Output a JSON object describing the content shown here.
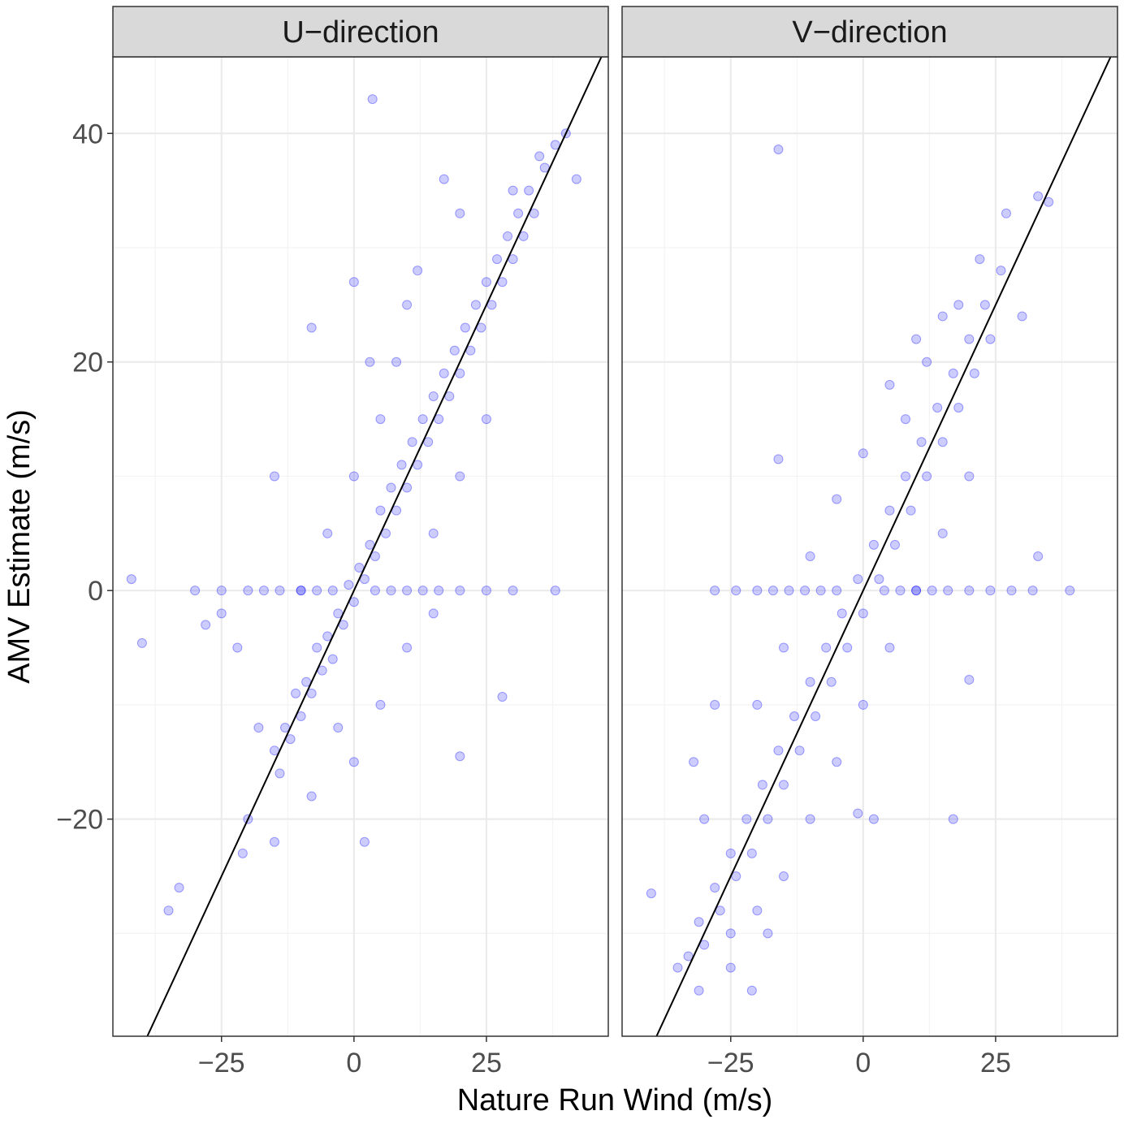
{
  "chart_data": {
    "type": "scatter",
    "xlabel": "Nature Run Wind (m/s)",
    "ylabel": "AMV Estimate (m/s)",
    "xlim": [
      -45.5,
      48
    ],
    "ylim": [
      -39,
      46.7
    ],
    "x_ticks": [
      -25,
      0,
      25
    ],
    "x_tick_labels": [
      "−25",
      "0",
      "25"
    ],
    "y_ticks": [
      -20,
      0,
      20,
      40
    ],
    "y_tick_labels": [
      "−20",
      "0",
      "20",
      "40"
    ],
    "grid": true,
    "reference_line": "y = x",
    "point_color": "#0000FF",
    "panels": [
      {
        "title": "U−direction",
        "points": [
          [
            -15,
            -14
          ],
          [
            -14,
            -16
          ],
          [
            -13,
            -12
          ],
          [
            -12,
            -13
          ],
          [
            -11,
            -9
          ],
          [
            -10,
            -11
          ],
          [
            -9,
            -8
          ],
          [
            -8,
            -9
          ],
          [
            -7,
            -5
          ],
          [
            -6,
            -7
          ],
          [
            -5,
            -4
          ],
          [
            -4,
            -6
          ],
          [
            -3,
            -2
          ],
          [
            -2,
            -3
          ],
          [
            -1,
            0.5
          ],
          [
            0,
            -1
          ],
          [
            1,
            2
          ],
          [
            2,
            1
          ],
          [
            3,
            4
          ],
          [
            4,
            3
          ],
          [
            5,
            7
          ],
          [
            6,
            5
          ],
          [
            7,
            9
          ],
          [
            8,
            7
          ],
          [
            9,
            11
          ],
          [
            10,
            9
          ],
          [
            11,
            13
          ],
          [
            12,
            11
          ],
          [
            13,
            15
          ],
          [
            14,
            13
          ],
          [
            15,
            17
          ],
          [
            16,
            15
          ],
          [
            17,
            19
          ],
          [
            18,
            17
          ],
          [
            19,
            21
          ],
          [
            20,
            19
          ],
          [
            21,
            23
          ],
          [
            22,
            21
          ],
          [
            23,
            25
          ],
          [
            24,
            23
          ],
          [
            25,
            27
          ],
          [
            26,
            25
          ],
          [
            27,
            29
          ],
          [
            28,
            27
          ],
          [
            29,
            31
          ],
          [
            30,
            29
          ],
          [
            31,
            33
          ],
          [
            32,
            31
          ],
          [
            33,
            35
          ],
          [
            34,
            33
          ],
          [
            36,
            37
          ],
          [
            38,
            39
          ],
          [
            -5,
            5
          ],
          [
            0,
            10
          ],
          [
            5,
            15
          ],
          [
            3,
            20
          ],
          [
            10,
            25
          ],
          [
            -10,
            0
          ],
          [
            -18,
            -12
          ],
          [
            -20,
            -20
          ],
          [
            -15,
            -22
          ],
          [
            15,
            5
          ],
          [
            20,
            10
          ],
          [
            25,
            15
          ],
          [
            10,
            -5
          ],
          [
            5,
            -10
          ],
          [
            0,
            -15
          ],
          [
            -8,
            -18
          ],
          [
            -3,
            -12
          ],
          [
            8,
            20
          ],
          [
            12,
            28
          ],
          [
            20,
            33
          ],
          [
            -22,
            -5
          ],
          [
            -25,
            -2
          ],
          [
            -28,
            -3
          ],
          [
            15,
            -2
          ],
          [
            30,
            35
          ],
          [
            35,
            38
          ],
          [
            -30,
            0
          ],
          [
            -25,
            0
          ],
          [
            -20,
            0
          ],
          [
            -17,
            0
          ],
          [
            -14,
            0
          ],
          [
            -10,
            0
          ],
          [
            -7,
            0
          ],
          [
            -4,
            0
          ],
          [
            4,
            0
          ],
          [
            7,
            0
          ],
          [
            10,
            0
          ],
          [
            13,
            0
          ],
          [
            16,
            0
          ],
          [
            20,
            0
          ],
          [
            25,
            0
          ],
          [
            30,
            0
          ],
          [
            38,
            0
          ],
          [
            3.5,
            43
          ],
          [
            -42,
            1
          ],
          [
            -40,
            -4.6
          ],
          [
            -33,
            -26
          ],
          [
            -35,
            -28
          ],
          [
            17,
            36
          ],
          [
            40,
            40
          ],
          [
            42,
            36
          ],
          [
            28,
            -9.3
          ],
          [
            20,
            -14.5
          ],
          [
            2,
            -22
          ],
          [
            -21,
            -23
          ],
          [
            -15,
            10
          ],
          [
            -8,
            23
          ],
          [
            0,
            27
          ]
        ]
      },
      {
        "title": "V−direction",
        "points": [
          [
            -33,
            -32
          ],
          [
            -31,
            -29
          ],
          [
            -30,
            -31
          ],
          [
            -28,
            -26
          ],
          [
            -27,
            -28
          ],
          [
            -25,
            -23
          ],
          [
            -24,
            -25
          ],
          [
            -22,
            -20
          ],
          [
            -21,
            -23
          ],
          [
            -19,
            -17
          ],
          [
            -18,
            -20
          ],
          [
            -16,
            -14
          ],
          [
            -15,
            -17
          ],
          [
            -13,
            -11
          ],
          [
            -12,
            -14
          ],
          [
            -10,
            -8
          ],
          [
            -9,
            -11
          ],
          [
            -7,
            -5
          ],
          [
            -6,
            -8
          ],
          [
            -4,
            -2
          ],
          [
            -3,
            -5
          ],
          [
            -1,
            1
          ],
          [
            0,
            -2
          ],
          [
            2,
            4
          ],
          [
            3,
            1
          ],
          [
            5,
            7
          ],
          [
            6,
            4
          ],
          [
            8,
            10
          ],
          [
            9,
            7
          ],
          [
            11,
            13
          ],
          [
            12,
            10
          ],
          [
            14,
            16
          ],
          [
            15,
            13
          ],
          [
            17,
            19
          ],
          [
            18,
            16
          ],
          [
            20,
            22
          ],
          [
            21,
            19
          ],
          [
            23,
            25
          ],
          [
            24,
            22
          ],
          [
            26,
            28
          ],
          [
            -20,
            -10
          ],
          [
            -15,
            -5
          ],
          [
            -10,
            3
          ],
          [
            -5,
            8
          ],
          [
            0,
            12
          ],
          [
            5,
            18
          ],
          [
            10,
            22
          ],
          [
            15,
            24
          ],
          [
            -25,
            -30
          ],
          [
            -20,
            -28
          ],
          [
            -15,
            -25
          ],
          [
            -10,
            -20
          ],
          [
            -5,
            -15
          ],
          [
            0,
            -10
          ],
          [
            5,
            -5
          ],
          [
            10,
            0
          ],
          [
            15,
            5
          ],
          [
            20,
            10
          ],
          [
            -30,
            -20
          ],
          [
            -28,
            -10
          ],
          [
            -32,
            -15
          ],
          [
            8,
            15
          ],
          [
            12,
            20
          ],
          [
            18,
            25
          ],
          [
            -28,
            0
          ],
          [
            -24,
            0
          ],
          [
            -20,
            0
          ],
          [
            -17,
            0
          ],
          [
            -14,
            0
          ],
          [
            -11,
            0
          ],
          [
            -8,
            0
          ],
          [
            -5,
            0
          ],
          [
            4,
            0
          ],
          [
            7,
            0
          ],
          [
            10,
            0
          ],
          [
            13,
            0
          ],
          [
            16,
            0
          ],
          [
            20,
            0
          ],
          [
            24,
            0
          ],
          [
            28,
            0
          ],
          [
            32,
            0
          ],
          [
            39,
            0
          ],
          [
            -16,
            38.6
          ],
          [
            -40,
            -26.5
          ],
          [
            -21,
            -35
          ],
          [
            33,
            34.5
          ],
          [
            35,
            34
          ],
          [
            -31,
            -35
          ],
          [
            -35,
            -33
          ],
          [
            -25,
            -33
          ],
          [
            -18,
            -30
          ],
          [
            -16,
            11.5
          ],
          [
            -1,
            -19.5
          ],
          [
            2,
            -20
          ],
          [
            17,
            -20
          ],
          [
            20,
            -7.8
          ],
          [
            33,
            3
          ],
          [
            30,
            24
          ],
          [
            27,
            33
          ],
          [
            22,
            29
          ]
        ]
      }
    ]
  }
}
